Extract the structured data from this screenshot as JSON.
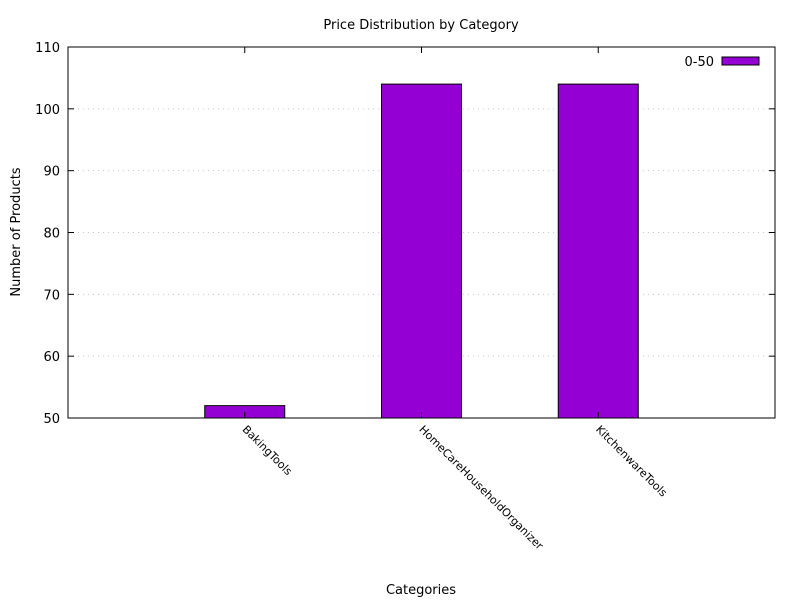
{
  "chart_data": {
    "type": "bar",
    "title": "Price Distribution by Category",
    "xlabel": "Categories",
    "ylabel": "Number of Products",
    "categories": [
      "BakingTools",
      "HomeCareHouseholdOrganizer",
      "KitchenwareTools"
    ],
    "series": [
      {
        "name": "0-50",
        "values": [
          52,
          104,
          104
        ],
        "color": "#9400d3"
      }
    ],
    "ylim": [
      50,
      110
    ],
    "yticks": [
      50,
      60,
      70,
      80,
      90,
      100,
      110
    ],
    "grid": "horizontal dotted",
    "legend": "top-right"
  }
}
